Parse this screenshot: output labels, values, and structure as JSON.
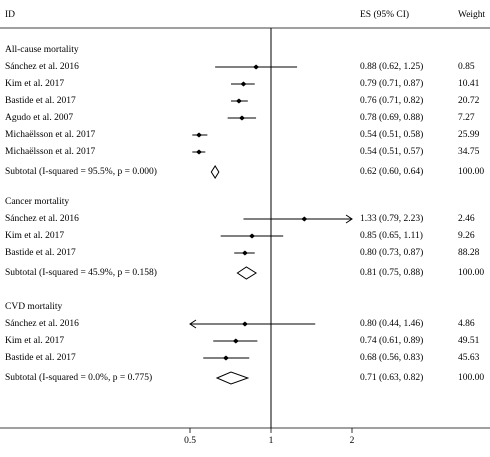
{
  "chart_data": {
    "type": "forest",
    "headers": {
      "id": "ID",
      "es": "ES (95% CI)",
      "weight": "Weight"
    },
    "xlim": [
      0.5,
      2
    ],
    "xticks": [
      0.5,
      1,
      2
    ],
    "log_scale": true,
    "null_line": 1,
    "color": "#000000",
    "groups": [
      {
        "name": "All-cause mortality",
        "studies": [
          {
            "label": "Sánchez et al. 2016",
            "es": 0.88,
            "lo": 0.62,
            "hi": 1.25,
            "ci_label": "0.88 (0.62, 1.25)",
            "weight": "0.85"
          },
          {
            "label": "Kim et al. 2017",
            "es": 0.79,
            "lo": 0.71,
            "hi": 0.87,
            "ci_label": "0.79 (0.71, 0.87)",
            "weight": "10.41"
          },
          {
            "label": "Bastide et al. 2017",
            "es": 0.76,
            "lo": 0.71,
            "hi": 0.82,
            "ci_label": "0.76 (0.71, 0.82)",
            "weight": "20.72"
          },
          {
            "label": "Agudo et al. 2007",
            "es": 0.78,
            "lo": 0.69,
            "hi": 0.88,
            "ci_label": "0.78 (0.69, 0.88)",
            "weight": "7.27"
          },
          {
            "label": "Michaëlsson et al. 2017",
            "es": 0.54,
            "lo": 0.51,
            "hi": 0.58,
            "ci_label": "0.54 (0.51, 0.58)",
            "weight": "25.99"
          },
          {
            "label": "Michaëlsson et al. 2017",
            "es": 0.54,
            "lo": 0.51,
            "hi": 0.57,
            "ci_label": "0.54 (0.51, 0.57)",
            "weight": "34.75"
          }
        ],
        "subtotal": {
          "label": "Subtotal  (I-squared = 95.5%, p = 0.000)",
          "es": 0.62,
          "lo": 0.6,
          "hi": 0.64,
          "ci_label": "0.62 (0.60, 0.64)",
          "weight": "100.00"
        }
      },
      {
        "name": "Cancer mortality",
        "studies": [
          {
            "label": "Sánchez et al. 2016",
            "es": 1.33,
            "lo": 0.79,
            "hi": 2.23,
            "ci_label": "1.33 (0.79, 2.23)",
            "weight": "2.46"
          },
          {
            "label": "Kim et al. 2017",
            "es": 0.85,
            "lo": 0.65,
            "hi": 1.11,
            "ci_label": "0.85 (0.65, 1.11)",
            "weight": "9.26"
          },
          {
            "label": "Bastide et al. 2017",
            "es": 0.8,
            "lo": 0.73,
            "hi": 0.87,
            "ci_label": "0.80 (0.73, 0.87)",
            "weight": "88.28"
          }
        ],
        "subtotal": {
          "label": "Subtotal  (I-squared = 45.9%, p = 0.158)",
          "es": 0.81,
          "lo": 0.75,
          "hi": 0.88,
          "ci_label": "0.81 (0.75, 0.88)",
          "weight": "100.00"
        }
      },
      {
        "name": "CVD mortality",
        "studies": [
          {
            "label": "Sánchez et al. 2016",
            "es": 0.8,
            "lo": 0.44,
            "hi": 1.46,
            "ci_label": "0.80 (0.44, 1.46)",
            "weight": "4.86"
          },
          {
            "label": "Kim et al. 2017",
            "es": 0.74,
            "lo": 0.61,
            "hi": 0.89,
            "ci_label": "0.74 (0.61, 0.89)",
            "weight": "49.51"
          },
          {
            "label": "Bastide et al. 2017",
            "es": 0.68,
            "lo": 0.56,
            "hi": 0.83,
            "ci_label": "0.68 (0.56, 0.83)",
            "weight": "45.63"
          }
        ],
        "subtotal": {
          "label": "Subtotal  (I-squared = 0.0%, p = 0.775)",
          "es": 0.71,
          "lo": 0.63,
          "hi": 0.82,
          "ci_label": "0.71 (0.63, 0.82)",
          "weight": "100.00"
        }
      }
    ]
  }
}
